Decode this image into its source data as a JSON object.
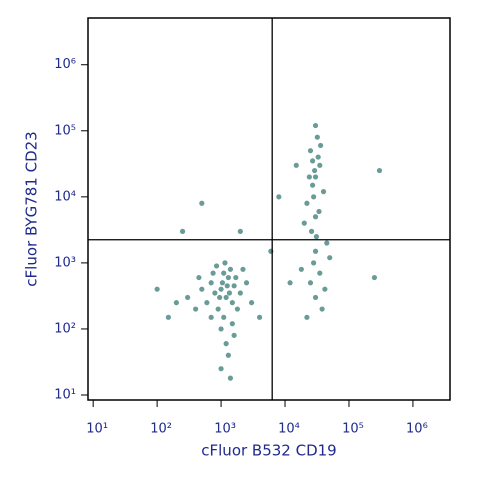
{
  "chart_data": {
    "type": "scatter",
    "x_label": "cFluor B532 CD19",
    "y_label": "cFluor BYG781 CD23",
    "xscale": "log",
    "yscale": "log",
    "xlim": [
      8.3,
      3800000
    ],
    "ylim": [
      8.4,
      5100000
    ],
    "xticks": [
      {
        "value": 10,
        "label": "10¹"
      },
      {
        "value": 100,
        "label": "10²"
      },
      {
        "value": 1000,
        "label": "10³"
      },
      {
        "value": 10000,
        "label": "10⁴"
      },
      {
        "value": 100000,
        "label": "10⁵"
      },
      {
        "value": 1000000,
        "label": "10⁶"
      }
    ],
    "yticks": [
      {
        "value": 10,
        "label": "10¹"
      },
      {
        "value": 100,
        "label": "10²"
      },
      {
        "value": 1000,
        "label": "10³"
      },
      {
        "value": 10000,
        "label": "10⁴"
      },
      {
        "value": 100000,
        "label": "10⁵"
      },
      {
        "value": 1000000,
        "label": "10⁶"
      }
    ],
    "gates": {
      "x": 6300,
      "y": 2240
    },
    "color": "#4f8a85",
    "x": [
      1200,
      1000,
      1500,
      800,
      1300,
      900,
      1100,
      1600,
      700,
      1400,
      1000,
      1200,
      1300,
      600,
      2000,
      1800,
      1100,
      950,
      1250,
      1500,
      700,
      500,
      400,
      300,
      2500,
      2200,
      1150,
      850,
      1000,
      1400,
      200,
      100,
      150,
      3000,
      1700,
      1050,
      1350,
      750,
      1600,
      450,
      30000,
      28000,
      35000,
      25000,
      32000,
      30000,
      27000,
      40000,
      22000,
      33000,
      26000,
      31000,
      30000,
      28000,
      35000,
      25000,
      30000,
      38000,
      22000,
      45000,
      20000,
      36000,
      29000,
      34000,
      24000,
      30000,
      27000,
      50000,
      18000,
      42000,
      250000,
      15000,
      8000,
      500,
      250,
      4000,
      6000,
      300000,
      12000,
      2000
    ],
    "values": [
      300,
      400,
      250,
      350,
      600,
      200,
      150,
      450,
      500,
      800,
      100,
      60,
      40,
      250,
      350,
      200,
      700,
      300,
      450,
      120,
      150,
      400,
      200,
      300,
      500,
      800,
      1000,
      900,
      25,
      18,
      250,
      400,
      150,
      250,
      600,
      500,
      350,
      700,
      80,
      600,
      20000,
      10000,
      30000,
      50000,
      80000,
      5000,
      15000,
      12000,
      8000,
      40000,
      3000,
      2500,
      1500,
      1000,
      700,
      500,
      300,
      200,
      150,
      2000,
      4000,
      60000,
      25000,
      6000,
      20000,
      120000,
      35000,
      1200,
      800,
      400,
      600,
      30000,
      10000,
      8000,
      3000,
      150,
      1500,
      25000,
      500,
      3000
    ]
  }
}
